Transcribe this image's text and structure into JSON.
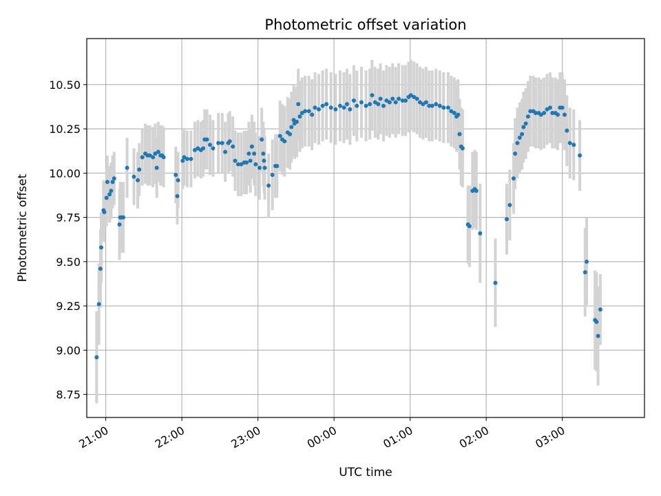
{
  "chart_data": {
    "type": "scatter",
    "title": "Photometric offset variation",
    "xlabel": "UTC time",
    "ylabel": "Photometric offset",
    "x_unit": "UTC time, hours after 00:00 on the first night (negative = before midnight)",
    "xlim": [
      -3.25,
      4.08
    ],
    "ylim": [
      8.62,
      10.76
    ],
    "x_ticks": [
      -3,
      -2,
      -1,
      0,
      1,
      2,
      3
    ],
    "x_tick_labels": [
      "21:00",
      "22:00",
      "23:00",
      "00:00",
      "01:00",
      "02:00",
      "03:00"
    ],
    "y_ticks": [
      8.75,
      9.0,
      9.25,
      9.5,
      9.75,
      10.0,
      10.25,
      10.5
    ],
    "y_tick_labels": [
      "8.75",
      "9.00",
      "9.25",
      "9.50",
      "9.75",
      "10.00",
      "10.25",
      "10.50"
    ],
    "grid": true,
    "marker_color": "#1f77b4",
    "errorbar_color": "#d3d3d3",
    "points": [
      [
        -3.12,
        8.96,
        0.26
      ],
      [
        -3.09,
        9.26,
        0.23
      ],
      [
        -3.07,
        9.46,
        0.22
      ],
      [
        -3.06,
        9.58,
        0.2
      ],
      [
        -3.03,
        9.79,
        0.17
      ],
      [
        -3.02,
        9.78,
        0.17
      ],
      [
        -2.99,
        9.86,
        0.16
      ],
      [
        -2.98,
        9.95,
        0.15
      ],
      [
        -2.95,
        9.88,
        0.16
      ],
      [
        -2.93,
        9.9,
        0.16
      ],
      [
        -2.91,
        9.95,
        0.15
      ],
      [
        -2.89,
        9.97,
        0.15
      ],
      [
        -2.82,
        9.71,
        0.2
      ],
      [
        -2.81,
        9.75,
        0.2
      ],
      [
        -2.79,
        9.75,
        0.2
      ],
      [
        -2.77,
        9.75,
        0.2
      ],
      [
        -2.72,
        10.03,
        0.17
      ],
      [
        -2.63,
        9.98,
        0.16
      ],
      [
        -2.58,
        9.96,
        0.16
      ],
      [
        -2.56,
        10.02,
        0.15
      ],
      [
        -2.52,
        10.09,
        0.16
      ],
      [
        -2.48,
        10.11,
        0.17
      ],
      [
        -2.45,
        10.1,
        0.17
      ],
      [
        -2.42,
        10.1,
        0.17
      ],
      [
        -2.38,
        10.09,
        0.17
      ],
      [
        -2.35,
        10.11,
        0.17
      ],
      [
        -2.33,
        10.03,
        0.17
      ],
      [
        -2.31,
        10.12,
        0.17
      ],
      [
        -2.28,
        10.1,
        0.17
      ],
      [
        -2.26,
        10.1,
        0.17
      ],
      [
        -2.24,
        10.09,
        0.17
      ],
      [
        -2.08,
        9.99,
        0.16
      ],
      [
        -2.06,
        9.87,
        0.16
      ],
      [
        -2.05,
        9.96,
        0.16
      ],
      [
        -1.99,
        10.07,
        0.16
      ],
      [
        -1.97,
        10.09,
        0.16
      ],
      [
        -1.93,
        10.08,
        0.16
      ],
      [
        -1.88,
        10.08,
        0.16
      ],
      [
        -1.83,
        10.13,
        0.16
      ],
      [
        -1.79,
        10.14,
        0.16
      ],
      [
        -1.75,
        10.13,
        0.16
      ],
      [
        -1.72,
        10.14,
        0.16
      ],
      [
        -1.7,
        10.19,
        0.17
      ],
      [
        -1.67,
        10.19,
        0.17
      ],
      [
        -1.63,
        10.16,
        0.17
      ],
      [
        -1.59,
        10.14,
        0.16
      ],
      [
        -1.52,
        10.17,
        0.17
      ],
      [
        -1.47,
        10.17,
        0.17
      ],
      [
        -1.43,
        10.12,
        0.17
      ],
      [
        -1.39,
        10.17,
        0.17
      ],
      [
        -1.37,
        10.18,
        0.17
      ],
      [
        -1.33,
        10.15,
        0.17
      ],
      [
        -1.3,
        10.07,
        0.17
      ],
      [
        -1.26,
        10.05,
        0.18
      ],
      [
        -1.22,
        10.05,
        0.18
      ],
      [
        -1.18,
        10.06,
        0.18
      ],
      [
        -1.15,
        10.06,
        0.18
      ],
      [
        -1.12,
        10.11,
        0.18
      ],
      [
        -1.1,
        10.07,
        0.18
      ],
      [
        -1.08,
        10.15,
        0.18
      ],
      [
        -1.05,
        10.11,
        0.18
      ],
      [
        -1.03,
        10.05,
        0.18
      ],
      [
        -0.98,
        10.03,
        0.18
      ],
      [
        -0.95,
        10.19,
        0.18
      ],
      [
        -0.93,
        10.11,
        0.18
      ],
      [
        -0.92,
        10.07,
        0.18
      ],
      [
        -0.91,
        10.03,
        0.18
      ],
      [
        -0.86,
        9.93,
        0.18
      ],
      [
        -0.81,
        9.99,
        0.2
      ],
      [
        -0.77,
        10.04,
        0.18
      ],
      [
        -0.75,
        10.04,
        0.18
      ],
      [
        -0.71,
        10.21,
        0.2
      ],
      [
        -0.68,
        10.19,
        0.2
      ],
      [
        -0.65,
        10.18,
        0.2
      ],
      [
        -0.61,
        10.23,
        0.2
      ],
      [
        -0.58,
        10.22,
        0.2
      ],
      [
        -0.56,
        10.26,
        0.2
      ],
      [
        -0.53,
        10.3,
        0.2
      ],
      [
        -0.52,
        10.28,
        0.2
      ],
      [
        -0.49,
        10.29,
        0.2
      ],
      [
        -0.47,
        10.39,
        0.2
      ],
      [
        -0.45,
        10.32,
        0.2
      ],
      [
        -0.42,
        10.34,
        0.2
      ],
      [
        -0.38,
        10.35,
        0.2
      ],
      [
        -0.33,
        10.35,
        0.2
      ],
      [
        -0.29,
        10.33,
        0.2
      ],
      [
        -0.25,
        10.37,
        0.2
      ],
      [
        -0.2,
        10.36,
        0.2
      ],
      [
        -0.15,
        10.38,
        0.2
      ],
      [
        -0.1,
        10.39,
        0.2
      ],
      [
        -0.04,
        10.37,
        0.2
      ],
      [
        0.02,
        10.36,
        0.2
      ],
      [
        0.08,
        10.38,
        0.2
      ],
      [
        0.13,
        10.37,
        0.2
      ],
      [
        0.17,
        10.39,
        0.2
      ],
      [
        0.21,
        10.36,
        0.2
      ],
      [
        0.26,
        10.41,
        0.2
      ],
      [
        0.3,
        10.38,
        0.2
      ],
      [
        0.36,
        10.4,
        0.2
      ],
      [
        0.42,
        10.38,
        0.2
      ],
      [
        0.47,
        10.39,
        0.2
      ],
      [
        0.5,
        10.44,
        0.2
      ],
      [
        0.54,
        10.4,
        0.2
      ],
      [
        0.58,
        10.39,
        0.2
      ],
      [
        0.61,
        10.42,
        0.2
      ],
      [
        0.65,
        10.38,
        0.2
      ],
      [
        0.69,
        10.41,
        0.2
      ],
      [
        0.73,
        10.4,
        0.2
      ],
      [
        0.77,
        10.42,
        0.2
      ],
      [
        0.81,
        10.4,
        0.2
      ],
      [
        0.85,
        10.42,
        0.2
      ],
      [
        0.9,
        10.41,
        0.2
      ],
      [
        0.94,
        10.41,
        0.2
      ],
      [
        0.98,
        10.43,
        0.2
      ],
      [
        1.01,
        10.44,
        0.2
      ],
      [
        1.05,
        10.43,
        0.2
      ],
      [
        1.09,
        10.42,
        0.2
      ],
      [
        1.13,
        10.4,
        0.2
      ],
      [
        1.17,
        10.39,
        0.2
      ],
      [
        1.21,
        10.4,
        0.2
      ],
      [
        1.25,
        10.38,
        0.2
      ],
      [
        1.29,
        10.38,
        0.2
      ],
      [
        1.34,
        10.39,
        0.2
      ],
      [
        1.39,
        10.38,
        0.2
      ],
      [
        1.44,
        10.37,
        0.2
      ],
      [
        1.5,
        10.37,
        0.2
      ],
      [
        1.54,
        10.35,
        0.2
      ],
      [
        1.58,
        10.34,
        0.2
      ],
      [
        1.61,
        10.32,
        0.2
      ],
      [
        1.63,
        10.33,
        0.2
      ],
      [
        1.65,
        10.22,
        0.2
      ],
      [
        1.67,
        10.15,
        0.22
      ],
      [
        1.69,
        10.14,
        0.22
      ],
      [
        1.76,
        9.71,
        0.22
      ],
      [
        1.78,
        9.7,
        0.23
      ],
      [
        1.82,
        9.9,
        0.22
      ],
      [
        1.85,
        9.91,
        0.22
      ],
      [
        1.87,
        9.9,
        0.22
      ],
      [
        1.92,
        9.66,
        0.28
      ],
      [
        2.12,
        9.38,
        0.25
      ],
      [
        2.27,
        9.74,
        0.2
      ],
      [
        2.31,
        9.82,
        0.2
      ],
      [
        2.36,
        9.97,
        0.2
      ],
      [
        2.38,
        10.11,
        0.2
      ],
      [
        2.41,
        10.17,
        0.2
      ],
      [
        2.44,
        10.2,
        0.2
      ],
      [
        2.47,
        10.22,
        0.2
      ],
      [
        2.49,
        10.26,
        0.2
      ],
      [
        2.52,
        10.28,
        0.2
      ],
      [
        2.55,
        10.32,
        0.2
      ],
      [
        2.58,
        10.35,
        0.2
      ],
      [
        2.62,
        10.35,
        0.2
      ],
      [
        2.65,
        10.34,
        0.2
      ],
      [
        2.69,
        10.34,
        0.2
      ],
      [
        2.72,
        10.33,
        0.2
      ],
      [
        2.76,
        10.34,
        0.2
      ],
      [
        2.8,
        10.36,
        0.2
      ],
      [
        2.84,
        10.37,
        0.2
      ],
      [
        2.87,
        10.34,
        0.2
      ],
      [
        2.91,
        10.34,
        0.2
      ],
      [
        2.94,
        10.33,
        0.2
      ],
      [
        2.97,
        10.37,
        0.2
      ],
      [
        3.0,
        10.37,
        0.2
      ],
      [
        3.03,
        10.33,
        0.2
      ],
      [
        3.06,
        10.24,
        0.2
      ],
      [
        3.1,
        10.17,
        0.2
      ],
      [
        3.15,
        10.16,
        0.2
      ],
      [
        3.23,
        10.1,
        0.2
      ],
      [
        3.3,
        9.44,
        0.25
      ],
      [
        3.32,
        9.5,
        0.25
      ],
      [
        3.43,
        9.17,
        0.28
      ],
      [
        3.45,
        9.16,
        0.28
      ],
      [
        3.47,
        9.08,
        0.28
      ],
      [
        3.5,
        9.23,
        0.2
      ]
    ]
  }
}
